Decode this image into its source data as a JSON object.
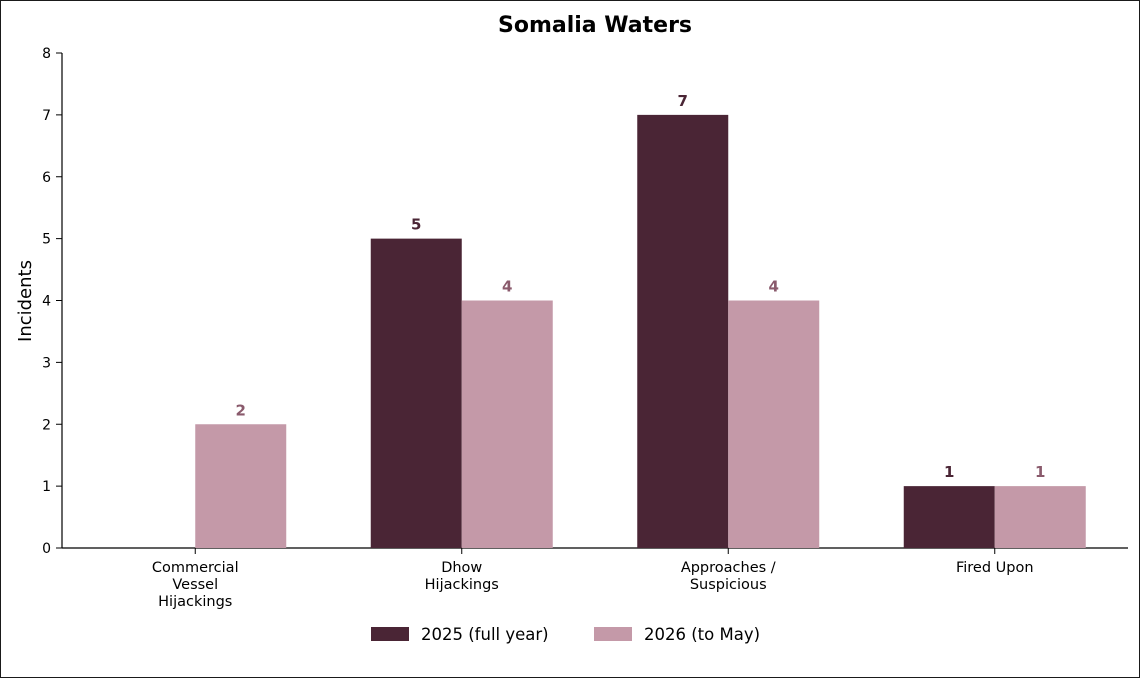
{
  "chart_data": {
    "type": "bar",
    "title": "Somalia Waters",
    "xlabel": "",
    "ylabel": "Incidents",
    "ylim": [
      0,
      8
    ],
    "yticks": [
      0,
      1,
      2,
      3,
      4,
      5,
      6,
      7,
      8
    ],
    "categories": [
      [
        "Commercial",
        "Vessel",
        "Hijackings"
      ],
      [
        "Dhow",
        "Hijackings"
      ],
      [
        "Approaches /",
        "Suspicious"
      ],
      [
        "Fired Upon"
      ]
    ],
    "series": [
      {
        "name": "2025 (full year)",
        "color": "#4a2535",
        "label_color": "#4a2535",
        "values": [
          0,
          5,
          7,
          1
        ],
        "labels": [
          "",
          "5",
          "7",
          "1"
        ]
      },
      {
        "name": "2026 (to May)",
        "color": "#c499a8",
        "label_color": "#8a5a6c",
        "values": [
          2,
          4,
          4,
          1
        ],
        "labels": [
          "2",
          "4",
          "4",
          "1"
        ]
      }
    ],
    "grid": false,
    "legend": "bottom-center"
  }
}
